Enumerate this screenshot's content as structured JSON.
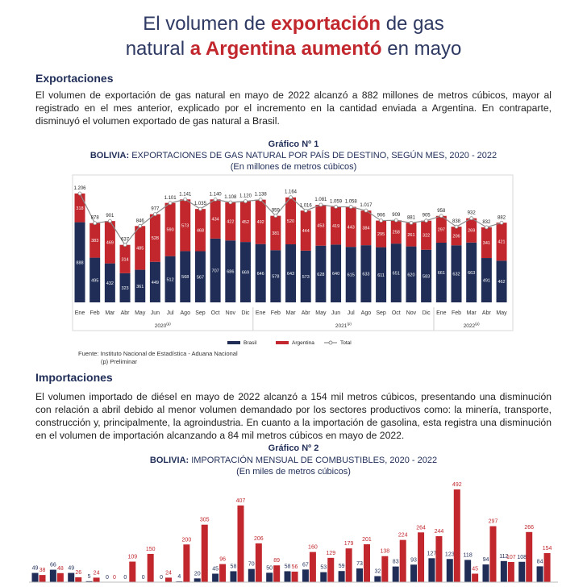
{
  "header": {
    "title_parts": [
      "El volumen de ",
      "exportación",
      " de gas",
      "natural ",
      "a Argentina aumentó",
      " en mayo"
    ]
  },
  "exports": {
    "heading": "Exportaciones",
    "paragraph": "El volumen de exportación de gas natural en mayo de 2022 alcanzó a 882 millones de metros cúbicos, mayor al registrado en el mes anterior, explicado por el incremento en la cantidad enviada a Argentina. En contraparte, disminuyó el volumen exportado de gas natural a Brasil.",
    "source": "Fuente: Instituto Nacional de Estadística - Aduana Nacional",
    "note": "(p) Preliminar"
  },
  "imports": {
    "heading": "Importaciones",
    "paragraph": "El volumen importado de diésel en mayo de 2022 alcanzó a 154 mil metros cúbicos, presentando una disminución con relación a abril debido al menor volumen demandado por los sectores productivos como: la minería, transporte, construcción y, principalmente, la agroindustria. En cuanto a la importación de gasolina, esta registra una disminución en el volumen de importación alcanzando a 84 mil metros cúbicos en mayo de 2022."
  },
  "chart_data": [
    {
      "type": "bar",
      "stacked": true,
      "label": "Gráfico Nº 1",
      "title_prefix": "BOLIVIA:",
      "title": "EXPORTACIONES DE GAS NATURAL POR PAÍS DE DESTINO, SEGÚN MES, 2020 - 2022",
      "subtitle": "(En millones de metros cúbicos)",
      "groups": [
        {
          "label": "2020",
          "note": "(p)",
          "categories": [
            "Ene",
            "Feb",
            "Mar",
            "Abr",
            "May",
            "Jun",
            "Jul",
            "Ago",
            "Sep",
            "Oct",
            "Nov",
            "Dic"
          ]
        },
        {
          "label": "2021",
          "note": "(p)",
          "categories": [
            "Ene",
            "Feb",
            "Mar",
            "Abr",
            "May",
            "Jun",
            "Jul",
            "Ago",
            "Sep",
            "Oct",
            "Nov",
            "Dic"
          ]
        },
        {
          "label": "2022",
          "note": "(p)",
          "categories": [
            "Ene",
            "Feb",
            "Mar",
            "Abr",
            "May"
          ]
        }
      ],
      "series": [
        {
          "name": "Brasil",
          "color": "#1f2d57",
          "values": [
            888,
            495,
            432,
            323,
            361,
            449,
            512,
            568,
            567,
            707,
            686,
            669,
            646,
            578,
            643,
            573,
            628,
            640,
            615,
            633,
            611,
            651,
            620,
            583,
            661,
            632,
            663,
            491,
            462
          ]
        },
        {
          "name": "Argentina",
          "color": "#c1272d",
          "values": [
            318,
            383,
            469,
            314,
            485,
            528,
            590,
            573,
            468,
            434,
            422,
            452,
            492,
            381,
            520,
            444,
            453,
            419,
            443,
            384,
            295,
            258,
            261,
            322,
            297,
            206,
            269,
            341,
            421
          ]
        },
        {
          "name": "Total",
          "type": "line",
          "color": "#8c8c8c",
          "values": [
            1206,
            878,
            901,
            637,
            846,
            977,
            1101,
            1141,
            1035,
            1140,
            1108,
            1120,
            1138,
            959,
            1164,
            1016,
            1081,
            1059,
            1058,
            1017,
            906,
            909,
            881,
            905,
            958,
            838,
            932,
            832,
            882
          ],
          "value_labels": [
            "1.206",
            "878",
            "901",
            "637",
            "846",
            "977",
            "1.101",
            "1.141",
            "1.035",
            "1.140",
            "1.108",
            "1.120",
            "1.138",
            "959",
            "1.164",
            "1.016",
            "1.081",
            "1.059",
            "1.058",
            "1.017",
            "906",
            "909",
            "881",
            "905",
            "958",
            "838",
            "932",
            "832",
            "882"
          ]
        }
      ]
    },
    {
      "type": "bar",
      "label": "Gráfico Nº 2",
      "title_prefix": "BOLIVIA:",
      "title": "IMPORTACIÓN MENSUAL DE COMBUSTIBLES, 2020 - 2022",
      "subtitle": "(En miles de metros cúbicos)",
      "series": [
        {
          "color": "#1f2d57",
          "values": [
            49,
            66,
            49,
            5,
            0,
            0,
            0,
            0,
            4,
            20,
            45,
            58,
            70,
            50,
            58,
            67,
            53,
            59,
            73,
            32,
            83,
            93,
            127,
            123,
            118,
            94,
            112,
            108,
            84
          ]
        },
        {
          "color": "#c1272d",
          "values": [
            38,
            48,
            26,
            24,
            0,
            109,
            150,
            24,
            200,
            305,
            96,
            407,
            206,
            89,
            56,
            160,
            129,
            179,
            201,
            138,
            224,
            264,
            244,
            492,
            45,
            297,
            107,
            266,
            154
          ]
        }
      ]
    }
  ]
}
